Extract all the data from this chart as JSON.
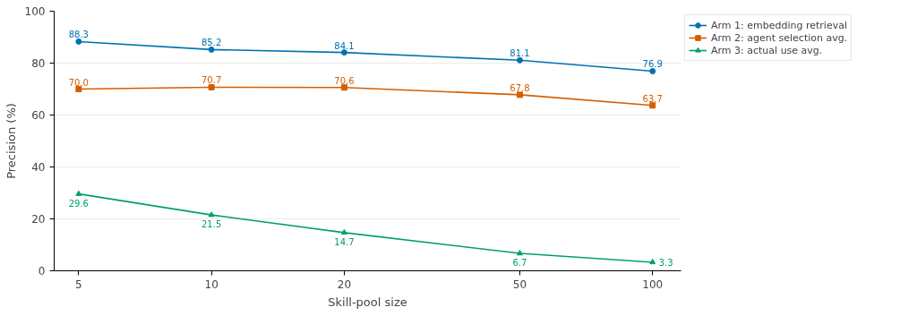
{
  "chart_data": {
    "type": "line",
    "xlabel": "Skill-pool size",
    "ylabel": "Precision (%)",
    "x": [
      5,
      10,
      20,
      50,
      100
    ],
    "log": "x",
    "xlim": [
      4.4,
      116
    ],
    "xticks": [
      5,
      10,
      20,
      50,
      100
    ],
    "ylim": [
      0,
      100
    ],
    "yticks": [
      0,
      20,
      40,
      60,
      80,
      100
    ],
    "grid": "y",
    "legend": "top right",
    "data_labels": true,
    "line_style": "solid",
    "series": [
      {
        "name": "Arm 1: embedding retrieval",
        "color": "#0072b2",
        "marker": "circle",
        "values": [
          88.3,
          85.2,
          84.1,
          81.1,
          76.9
        ]
      },
      {
        "name": "Arm 2: agent selection avg.",
        "color": "#d55e00",
        "marker": "square",
        "values": [
          70.0,
          70.7,
          70.6,
          67.8,
          63.7
        ],
        "value_labels": [
          "70.0",
          "70.7",
          "70.6",
          "67.8",
          "63.7"
        ]
      },
      {
        "name": "Arm 3: actual use avg.",
        "color": "#009e73",
        "marker": "triangle",
        "values": [
          29.6,
          21.5,
          14.7,
          6.7,
          3.3
        ]
      }
    ]
  }
}
